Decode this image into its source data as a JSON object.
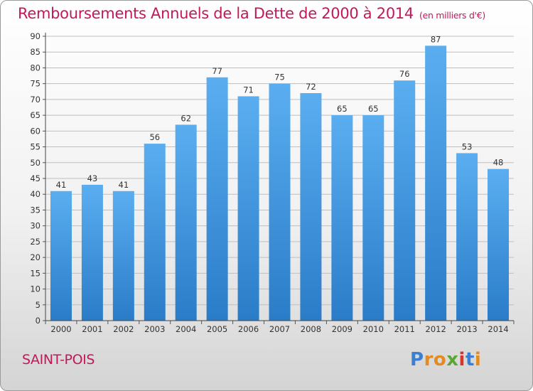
{
  "title": "Remboursements Annuels de la Dette de 2000 à 2014",
  "unit": "(en milliers d'€)",
  "town": "SAINT-POIS",
  "logo": "Proxiti",
  "colors": {
    "title": "#c2185b",
    "bar_top": "#5aaef0",
    "bar_bottom": "#2a7cc8",
    "grid": "#bfbfbf"
  },
  "chart_data": {
    "type": "bar",
    "categories": [
      "2000",
      "2001",
      "2002",
      "2003",
      "2004",
      "2005",
      "2006",
      "2007",
      "2008",
      "2009",
      "2010",
      "2011",
      "2012",
      "2013",
      "2014"
    ],
    "values": [
      41,
      43,
      41,
      56,
      62,
      77,
      71,
      75,
      72,
      65,
      65,
      76,
      87,
      53,
      48
    ],
    "title": "Remboursements Annuels de la Dette de 2000 à 2014",
    "xlabel": "",
    "ylabel": "",
    "ylim": [
      0,
      90
    ],
    "yticks": [
      0,
      5,
      10,
      15,
      20,
      25,
      30,
      35,
      40,
      45,
      50,
      55,
      60,
      65,
      70,
      75,
      80,
      85,
      90
    ],
    "grid": true,
    "data_labels": true
  }
}
